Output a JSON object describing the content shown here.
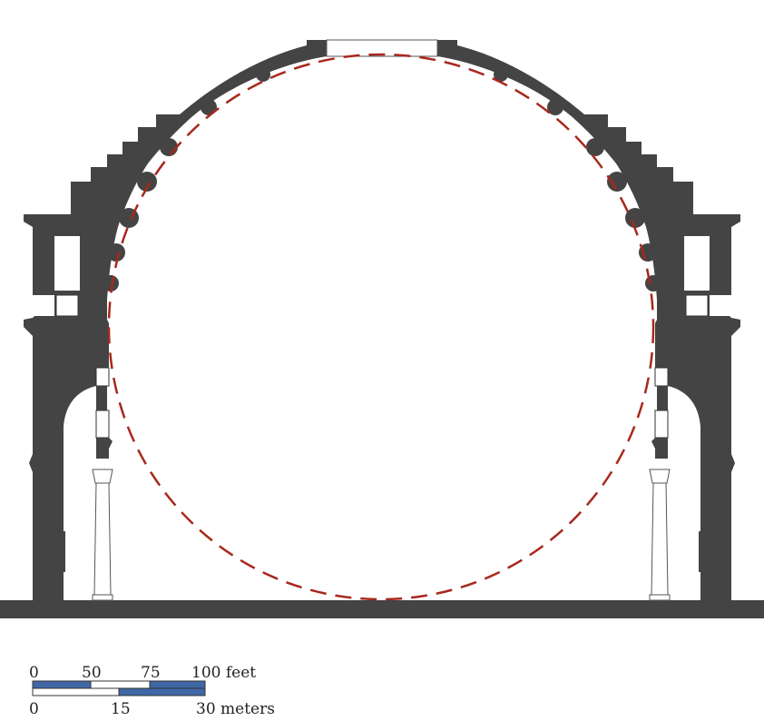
{
  "diagram": {
    "subject": "Pantheon cross-section",
    "colors": {
      "wall": "#444444",
      "circle": "#a8281c",
      "scale_blue": "#3f67a6",
      "scale_white": "#ffffff",
      "outline": "#333333"
    }
  },
  "scale_bar": {
    "feet_labels": [
      "0",
      "50",
      "75",
      "100 feet"
    ],
    "meter_labels": [
      "0",
      "15",
      "30 meters"
    ]
  }
}
